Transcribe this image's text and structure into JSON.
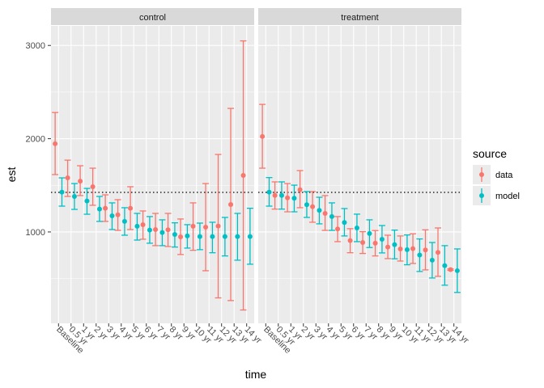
{
  "chart_data": {
    "type": "scatter",
    "title": "",
    "xlabel": "time",
    "ylabel": "est",
    "ylim": [
      20,
      3210
    ],
    "yticks": [
      1000,
      2000,
      3000
    ],
    "categories": [
      "Baseline",
      "0.5 yr",
      "1 yr",
      "2 yr",
      "3 yr",
      "4 yr",
      "5 yr",
      "6 yr",
      "7 yr",
      "8 yr",
      "9 yr",
      "10 yr",
      "11 yr",
      "12 yr",
      "13 yr",
      "14 yr"
    ],
    "reference_line": 1424,
    "legend": {
      "title": "source",
      "placement": "right"
    },
    "colors": {
      "data": "#F8766D",
      "model": "#00BFC4"
    },
    "panels": [
      {
        "label": "control",
        "series": [
          {
            "name": "data",
            "est": [
              1946,
              1580,
              1545,
              1485,
              1254,
              1184,
              1254,
              1078,
              1026,
              1023,
              948,
              1061,
              1052,
              1063,
              1294,
              1606
            ],
            "lo": [
              1615,
              1381,
              1390,
              1286,
              1113,
              1017,
              1026,
              922,
              853,
              844,
              758,
              803,
              584,
              293,
              264,
              163
            ],
            "hi": [
              2281,
              1770,
              1710,
              1684,
              1398,
              1346,
              1485,
              1225,
              1199,
              1199,
              1139,
              1312,
              1519,
              1831,
              2325,
              3049
            ]
          },
          {
            "name": "model",
            "est": [
              1427,
              1381,
              1332,
              1245,
              1173,
              1113,
              1061,
              1020,
              994,
              974,
              957,
              951,
              951,
              951,
              951,
              951
            ],
            "lo": [
              1277,
              1242,
              1190,
              1113,
              1026,
              965,
              913,
              879,
              853,
              838,
              827,
              810,
              777,
              743,
              697,
              654
            ],
            "hi": [
              1580,
              1519,
              1467,
              1381,
              1312,
              1260,
              1199,
              1165,
              1130,
              1098,
              1078,
              1095,
              1104,
              1156,
              1199,
              1254
            ]
          }
        ]
      },
      {
        "label": "treatment",
        "series": [
          {
            "name": "data",
            "est": [
              2024,
              1392,
              1366,
              1453,
              1271,
              1199,
              1032,
              907,
              887,
              879,
              838,
              818,
              821,
              807,
              781,
              596
            ],
            "lo": [
              1684,
              1245,
              1216,
              1260,
              1104,
              1017,
              896,
              777,
              769,
              743,
              714,
              688,
              662,
              593,
              524,
              588
            ],
            "hi": [
              2368,
              1537,
              1519,
              1658,
              1433,
              1390,
              1165,
              1035,
              1003,
              1015,
              965,
              957,
              980,
              1023,
              1043,
              604
            ]
          },
          {
            "name": "model",
            "est": [
              1427,
              1392,
              1361,
              1292,
              1231,
              1165,
              1101,
              1043,
              983,
              922,
              864,
              810,
              752,
              697,
              639,
              584
            ],
            "lo": [
              1277,
              1245,
              1216,
              1156,
              1087,
              1017,
              957,
              896,
              833,
              775,
              712,
              648,
              576,
              506,
              429,
              351
            ],
            "hi": [
              1583,
              1537,
              1502,
              1433,
              1372,
              1312,
              1251,
              1191,
              1130,
              1069,
              1020,
              968,
              925,
              887,
              853,
              818
            ]
          }
        ]
      }
    ]
  }
}
